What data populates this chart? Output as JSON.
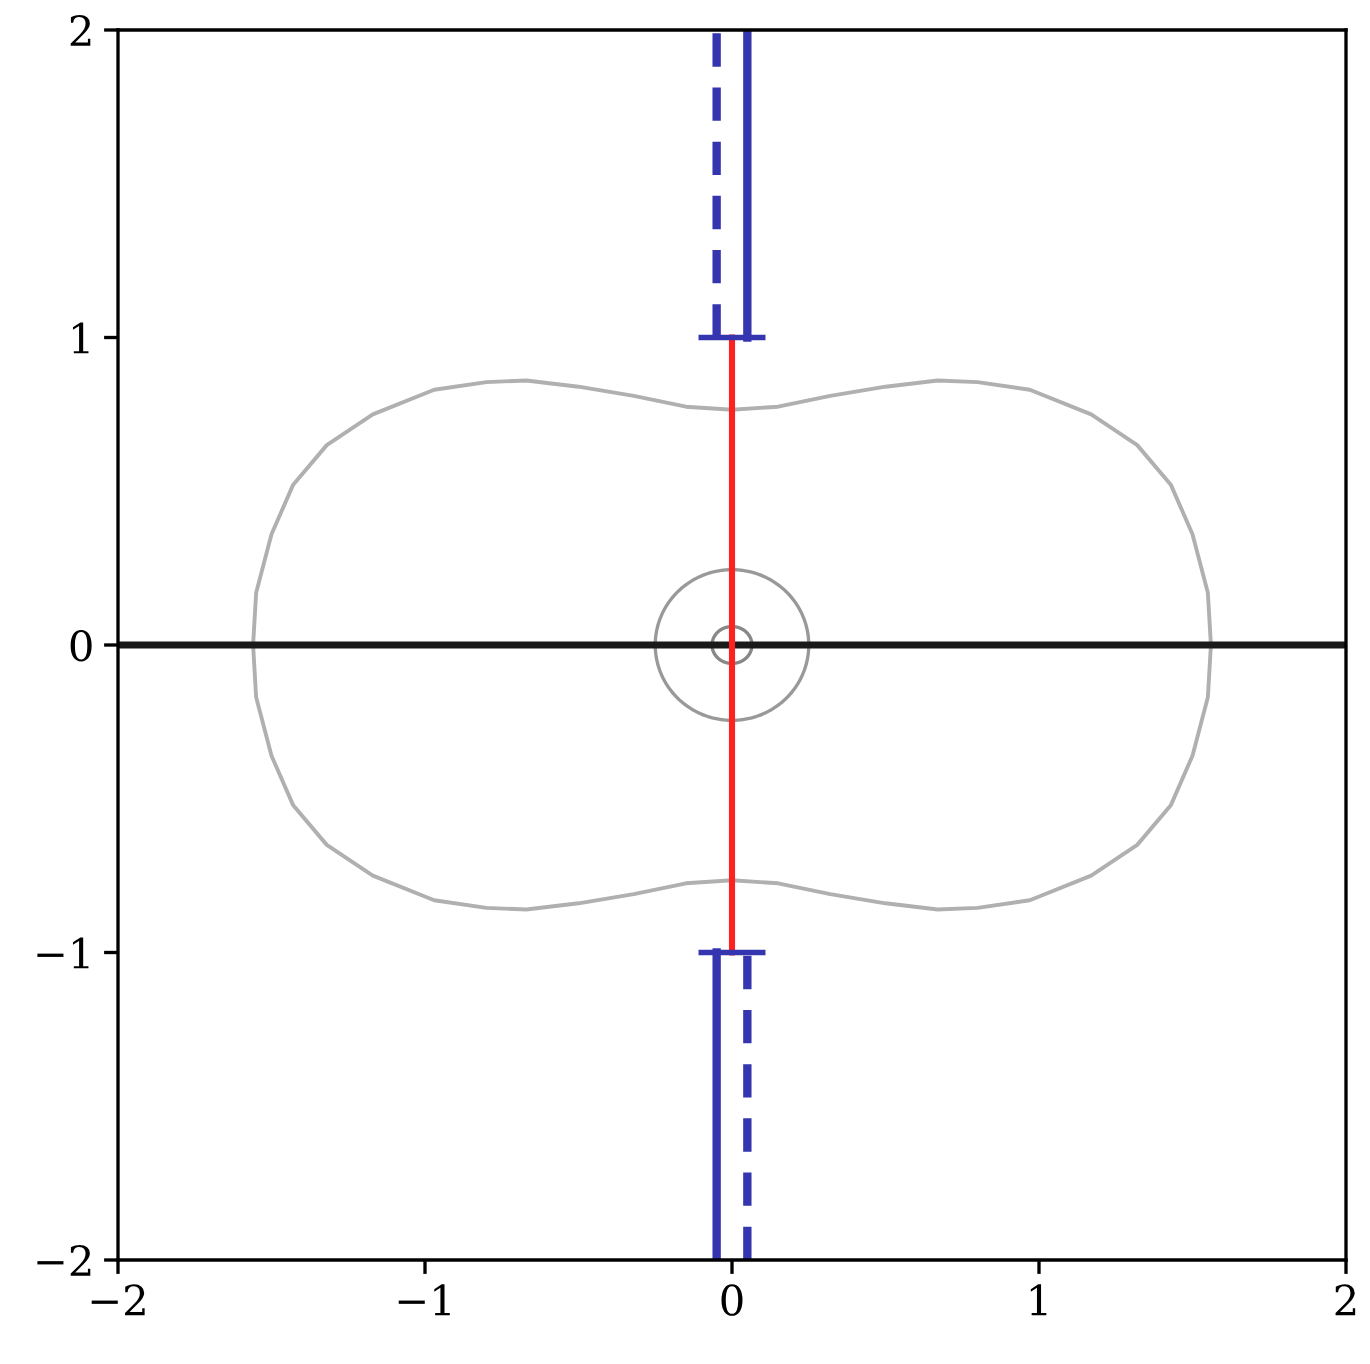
{
  "chart_data": {
    "type": "line",
    "xlim": [
      -2,
      2
    ],
    "ylim": [
      -2,
      2
    ],
    "xticks": [
      {
        "value": -2,
        "label": "−2"
      },
      {
        "value": -1,
        "label": "−1"
      },
      0,
      1,
      2
    ],
    "yticks": [
      {
        "value": -2,
        "label": "−2"
      },
      {
        "value": -1,
        "label": "−1"
      },
      0,
      1,
      2
    ],
    "grid": false,
    "marker": "none",
    "series": [
      {
        "color": "#1a1a1a",
        "line_style": "solid",
        "x": [
          -2,
          2
        ],
        "values": [
          0,
          0
        ]
      },
      {
        "color": "#ff2020",
        "line_style": "solid",
        "x": [
          0,
          0
        ],
        "values": [
          -1,
          1
        ]
      },
      {
        "color": "#3535b0",
        "line_style": "solid",
        "x": [
          0.05,
          0.05
        ],
        "values": [
          1,
          2
        ]
      },
      {
        "color": "#3535b0",
        "line_style": "dashed",
        "x": [
          -0.05,
          -0.05
        ],
        "values": [
          1,
          2
        ]
      },
      {
        "color": "#3535b0",
        "line_style": "solid",
        "x": [
          -0.1,
          0.1
        ],
        "values": [
          1,
          1
        ]
      },
      {
        "color": "#3535b0",
        "line_style": "solid",
        "x": [
          -0.05,
          -0.05
        ],
        "values": [
          -2,
          -1
        ]
      },
      {
        "color": "#3535b0",
        "line_style": "dashed",
        "x": [
          0.05,
          0.05
        ],
        "values": [
          -2,
          -1
        ]
      },
      {
        "color": "#3535b0",
        "line_style": "solid",
        "x": [
          -0.1,
          0.1
        ],
        "values": [
          -1,
          -1
        ]
      }
    ]
  }
}
